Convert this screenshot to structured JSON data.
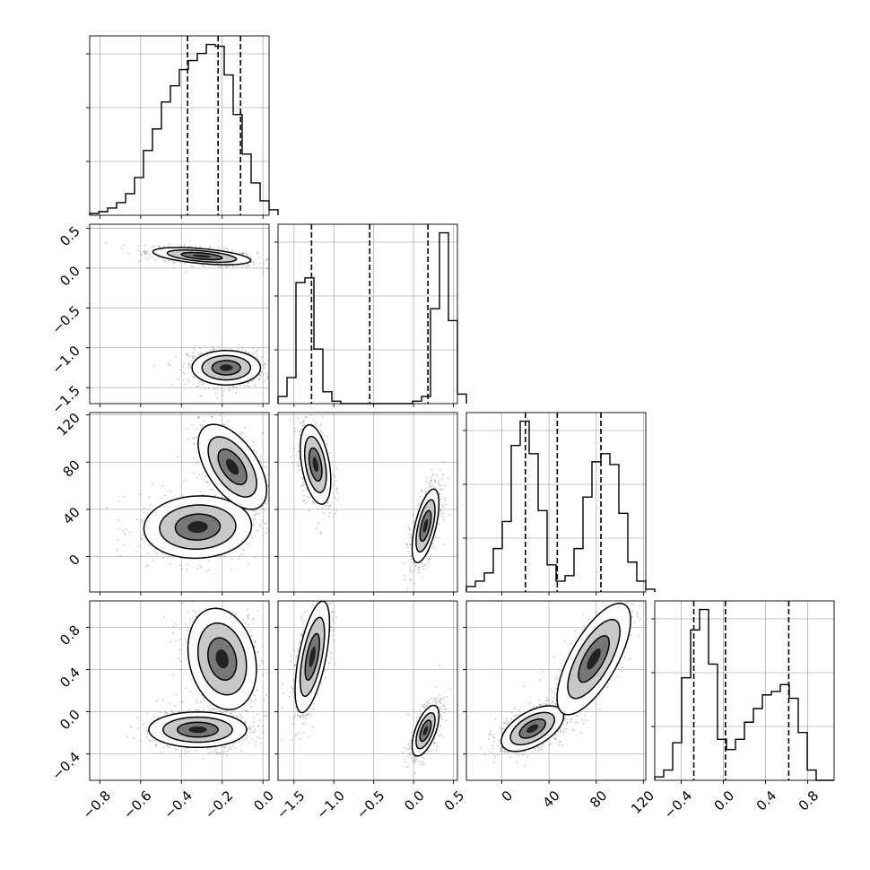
{
  "chart_data": {
    "type": "corner",
    "grid": true,
    "colors": {
      "line": "#000000",
      "grid": "#b0b0b0",
      "points": "#555555",
      "fill_dark": "#222222",
      "fill_mid": "#777777",
      "fill_light": "#c8c8c8"
    },
    "parameters": [
      {
        "range": [
          -0.85,
          0.03
        ],
        "ticks": [
          -0.8,
          -0.6,
          -0.4,
          -0.2,
          0.0
        ],
        "tick_labels": [
          "−0.8",
          "−0.6",
          "−0.4",
          "−0.2",
          "0.0"
        ]
      },
      {
        "range": [
          -1.7,
          0.55
        ],
        "ticks": [
          -1.5,
          -1.0,
          -0.5,
          0.0,
          0.5
        ],
        "tick_labels": [
          "−1.5",
          "−1.0",
          "−0.5",
          "0.0",
          "0.5"
        ]
      },
      {
        "range": [
          -30,
          122
        ],
        "ticks": [
          0,
          40,
          80,
          120
        ],
        "tick_labels": [
          "0",
          "40",
          "80",
          "120"
        ]
      },
      {
        "range": [
          -0.65,
          1.05
        ],
        "ticks": [
          -0.4,
          0.0,
          0.4,
          0.8
        ],
        "tick_labels": [
          "−0.4",
          "0.0",
          "0.4",
          "0.8"
        ]
      }
    ],
    "histograms": [
      {
        "edges_start": -0.85,
        "bin_width": 0.044,
        "counts": [
          1,
          2,
          4,
          7,
          12,
          21,
          36,
          48,
          63,
          72,
          81,
          86,
          90,
          95,
          94,
          78,
          56,
          34,
          18,
          8,
          3
        ],
        "quantiles": [
          -0.37,
          -0.22,
          -0.11
        ]
      },
      {
        "edges_start": -1.7,
        "bin_width": 0.1125,
        "counts": [
          3,
          11,
          51,
          53,
          23,
          5,
          1,
          0,
          0,
          0,
          0,
          0,
          0,
          0,
          0,
          1,
          3,
          40,
          72,
          35,
          4
        ],
        "quantiles": [
          -1.28,
          -0.55,
          0.18
        ]
      },
      {
        "edges_start": -30,
        "bin_width": 7.6,
        "counts": [
          2,
          4,
          7,
          16,
          26,
          54,
          63,
          51,
          30,
          10,
          4,
          6,
          16,
          35,
          48,
          51,
          47,
          29,
          11,
          4,
          1
        ],
        "quantiles": [
          20,
          47,
          84
        ]
      },
      {
        "edges_start": -0.65,
        "bin_width": 0.085,
        "counts": [
          1,
          3,
          11,
          30,
          44,
          50,
          34,
          12,
          9,
          12,
          17,
          21,
          25,
          26,
          28,
          24,
          14,
          3,
          0,
          0
        ],
        "quantiles": [
          -0.28,
          0.02,
          0.62
        ]
      }
    ],
    "pairs": [
      {
        "row": 1,
        "col": 0,
        "components": [
          {
            "center": [
              -0.3,
              0.15
            ],
            "sd": [
              0.1,
              0.045
            ],
            "corr": -0.5,
            "weight": 0.5
          },
          {
            "center": [
              -0.18,
              -1.25
            ],
            "sd": [
              0.07,
              0.09
            ],
            "corr": 0.0,
            "weight": 0.5
          }
        ]
      },
      {
        "row": 2,
        "col": 0,
        "components": [
          {
            "center": [
              -0.32,
              25
            ],
            "sd": [
              0.11,
              11
            ],
            "corr": 0.05,
            "weight": 0.5
          },
          {
            "center": [
              -0.15,
              76
            ],
            "sd": [
              0.07,
              15
            ],
            "corr": -0.55,
            "weight": 0.5
          }
        ]
      },
      {
        "row": 2,
        "col": 1,
        "components": [
          {
            "center": [
              -1.23,
              78
            ],
            "sd": [
              0.08,
              14
            ],
            "corr": -0.4,
            "weight": 0.5
          },
          {
            "center": [
              0.15,
              26
            ],
            "sd": [
              0.07,
              13
            ],
            "corr": 0.6,
            "weight": 0.5
          }
        ]
      },
      {
        "row": 3,
        "col": 0,
        "components": [
          {
            "center": [
              -0.32,
              -0.17
            ],
            "sd": [
              0.1,
              0.07
            ],
            "corr": 0.0,
            "weight": 0.5
          },
          {
            "center": [
              -0.2,
              0.5
            ],
            "sd": [
              0.07,
              0.2
            ],
            "corr": -0.2,
            "weight": 0.5
          }
        ]
      },
      {
        "row": 3,
        "col": 1,
        "components": [
          {
            "center": [
              -1.27,
              0.52
            ],
            "sd": [
              0.09,
              0.22
            ],
            "corr": 0.6,
            "weight": 0.5
          },
          {
            "center": [
              0.15,
              -0.18
            ],
            "sd": [
              0.07,
              0.1
            ],
            "corr": 0.6,
            "weight": 0.5
          }
        ]
      },
      {
        "row": 3,
        "col": 2,
        "components": [
          {
            "center": [
              26,
              -0.16
            ],
            "sd": [
              11,
              0.09
            ],
            "corr": 0.55,
            "weight": 0.5
          },
          {
            "center": [
              78,
              0.5
            ],
            "sd": [
              13,
              0.22
            ],
            "corr": 0.7,
            "weight": 0.5
          }
        ]
      }
    ]
  }
}
